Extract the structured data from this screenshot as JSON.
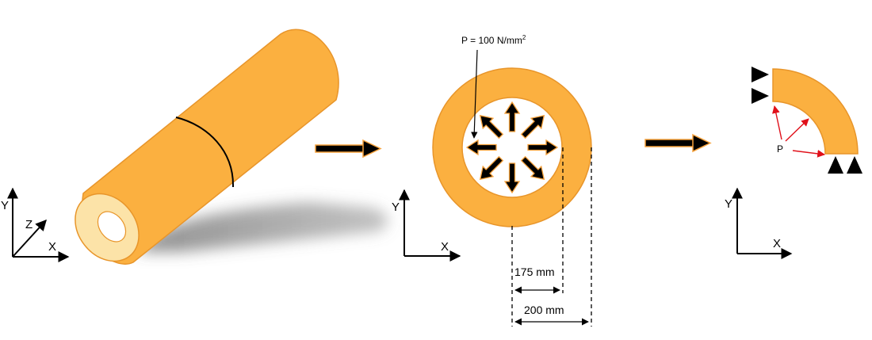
{
  "pressure_label": "P = 100 N/mm",
  "pressure_exp": "2",
  "dim_inner": "175 mm",
  "dim_outer": "200 mm",
  "p_label": "P",
  "axes_3d": {
    "x": "X",
    "y": "Y",
    "z": "Z"
  },
  "axes_section": {
    "x": "X",
    "y": "Y"
  },
  "axes_quarter": {
    "x": "X",
    "y": "Y"
  },
  "colors": {
    "body": "#FBB040",
    "body_edge": "#E8952A",
    "cylinder_end": "#FCE3A8",
    "arrow_fill": "#000000",
    "arrow_edge": "#F7A23C",
    "load_arrow": "#E0101A",
    "shadow": "#9a9a9a",
    "support": "#000000"
  },
  "icons": [
    "process-arrow-icon",
    "support-triangle-icon",
    "pressure-arrow-icon"
  ]
}
